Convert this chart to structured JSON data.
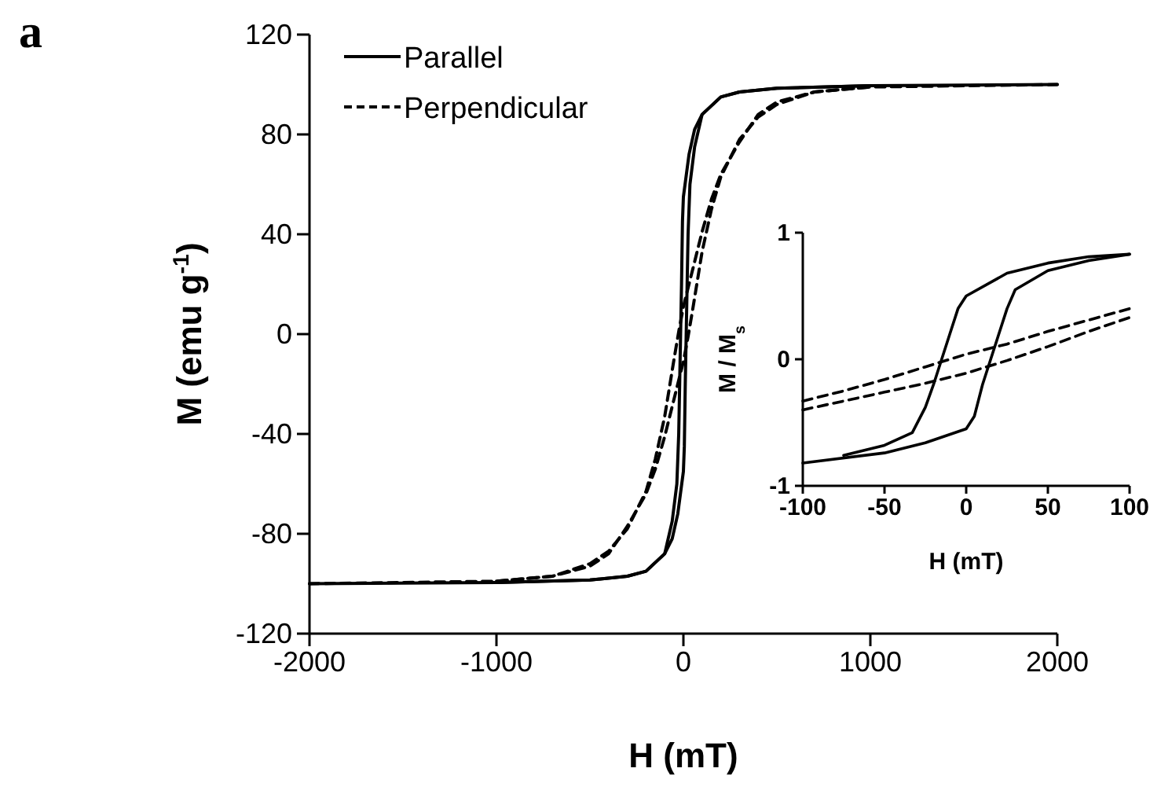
{
  "chart_data": [
    {
      "type": "line",
      "title": "a",
      "xlabel": "H (mT)",
      "ylabel": "M (emu g$^{-1}$)",
      "xlim": [
        -2000,
        2000
      ],
      "xticks": [
        -2000,
        -1000,
        0,
        1000,
        2000
      ],
      "ylim": [
        -120,
        120
      ],
      "yticks": [
        -120,
        -80,
        -40,
        0,
        40,
        80,
        120
      ],
      "legend": "top left",
      "series": [
        {
          "name": "Parallel",
          "color": "#000000",
          "line_style": "solid",
          "x": [
            -2000,
            -1000,
            -500,
            -300,
            -200,
            -100,
            -60,
            -30,
            0,
            5,
            10,
            15,
            20,
            25,
            35,
            60,
            100,
            200,
            300,
            500,
            1000,
            2000
          ],
          "values": [
            -100,
            -99.5,
            -98.5,
            -97,
            -95,
            -88,
            -82,
            -72,
            -55,
            -45,
            -20,
            0,
            20,
            40,
            60,
            75,
            88,
            95,
            97,
            98.5,
            99.5,
            100
          ]
        },
        {
          "color": "#000000",
          "line_style": "solid",
          "x": [
            -1000,
            -500,
            -300,
            -200,
            -100,
            -60,
            -35,
            -25,
            -20,
            -15,
            -10,
            -5,
            0,
            30,
            60,
            100,
            200,
            300,
            500,
            1000
          ],
          "values": [
            -99.5,
            -98.5,
            -97,
            -95,
            -88,
            -75,
            -60,
            -40,
            -20,
            0,
            20,
            45,
            55,
            72,
            82,
            88,
            95,
            97,
            98.5,
            99.5
          ]
        },
        {
          "name": "Perpendicular",
          "color": "#000000",
          "line_style": "dashed",
          "x": [
            -2000,
            -1000,
            -700,
            -500,
            -400,
            -300,
            -200,
            -150,
            -100,
            -50,
            0,
            25,
            50,
            100,
            150,
            200,
            300,
            400,
            500,
            700,
            1000,
            2000
          ],
          "values": [
            -100,
            -99,
            -97,
            -93,
            -88,
            -77,
            -64,
            -54,
            -41,
            -26,
            -11,
            -1,
            10,
            33,
            50,
            63,
            78,
            87,
            92,
            97,
            99,
            100
          ]
        },
        {
          "color": "#000000",
          "line_style": "dashed",
          "x": [
            -1000,
            -700,
            -500,
            -400,
            -300,
            -200,
            -150,
            -100,
            -50,
            -25,
            0,
            50,
            100,
            150,
            200,
            300,
            400,
            500,
            700,
            1000
          ],
          "values": [
            -99,
            -97,
            -92,
            -87,
            -78,
            -63,
            -50,
            -33,
            -10,
            1,
            11,
            26,
            41,
            54,
            64,
            77,
            88,
            93,
            97,
            99
          ]
        }
      ]
    },
    {
      "type": "line",
      "xlabel": "H (mT)",
      "ylabel": "M / M$_{s}$",
      "xlim": [
        -100,
        100
      ],
      "xticks": [
        -100,
        -50,
        0,
        50,
        100
      ],
      "ylim": [
        -1,
        1
      ],
      "yticks": [
        -1,
        0,
        1
      ],
      "series": [
        {
          "color": "#000000",
          "line_style": "solid",
          "x": [
            -100,
            -50,
            -25,
            0,
            5,
            10,
            15,
            20,
            25,
            30,
            50,
            75,
            100
          ],
          "values": [
            -0.82,
            -0.74,
            -0.66,
            -0.55,
            -0.45,
            -0.2,
            0,
            0.2,
            0.4,
            0.55,
            0.7,
            0.78,
            0.83
          ]
        },
        {
          "color": "#000000",
          "line_style": "solid",
          "x": [
            -75,
            -50,
            -33,
            -25,
            -20,
            -15,
            -10,
            -5,
            0,
            25,
            50,
            75,
            100
          ],
          "values": [
            -0.76,
            -0.68,
            -0.58,
            -0.38,
            -0.2,
            0,
            0.2,
            0.4,
            0.5,
            0.68,
            0.76,
            0.81,
            0.83
          ]
        },
        {
          "color": "#000000",
          "line_style": "dashed",
          "x": [
            -100,
            -75,
            -50,
            -25,
            0,
            25,
            50,
            75,
            100
          ],
          "values": [
            -0.4,
            -0.33,
            -0.26,
            -0.19,
            -0.11,
            -0.01,
            0.1,
            0.22,
            0.33
          ]
        },
        {
          "color": "#000000",
          "line_style": "dashed",
          "x": [
            -100,
            -75,
            -50,
            -25,
            0,
            25,
            50,
            75,
            100
          ],
          "values": [
            -0.33,
            -0.25,
            -0.16,
            -0.06,
            0.04,
            0.12,
            0.22,
            0.31,
            0.4
          ]
        }
      ]
    }
  ]
}
